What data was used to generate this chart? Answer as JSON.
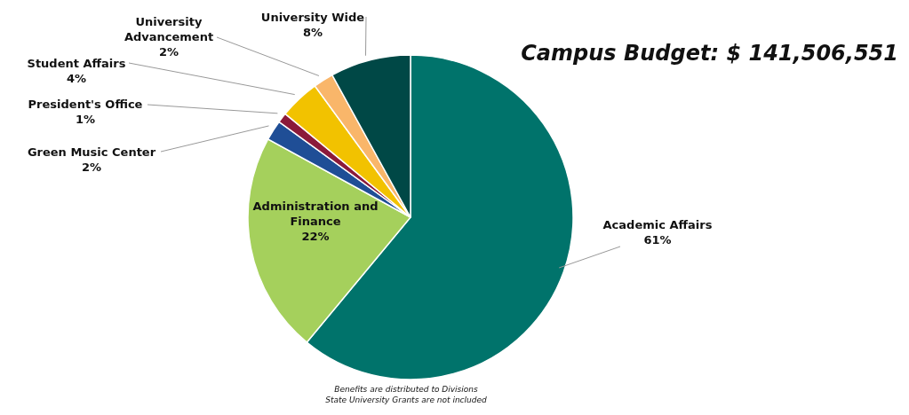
{
  "chart_data": {
    "type": "pie",
    "title": "Campus Budget: $ 141,506,551",
    "categories": [
      "Academic Affairs",
      "Administration and Finance",
      "Green Music Center",
      "President's Office",
      "Student Affairs",
      "University Advancement",
      "University Wide"
    ],
    "values": [
      61,
      22,
      2,
      1,
      4,
      2,
      8
    ],
    "value_labels": [
      "61%",
      "22%",
      "2%",
      "1%",
      "4%",
      "2%",
      "8%"
    ],
    "colors": [
      "#00736b",
      "#a5d05c",
      "#1f4e96",
      "#8b1a3a",
      "#f2c200",
      "#f9b66a",
      "#004846"
    ],
    "annotations": [
      "Benefits are distributed to Divisions",
      "State University Grants are not included"
    ]
  }
}
